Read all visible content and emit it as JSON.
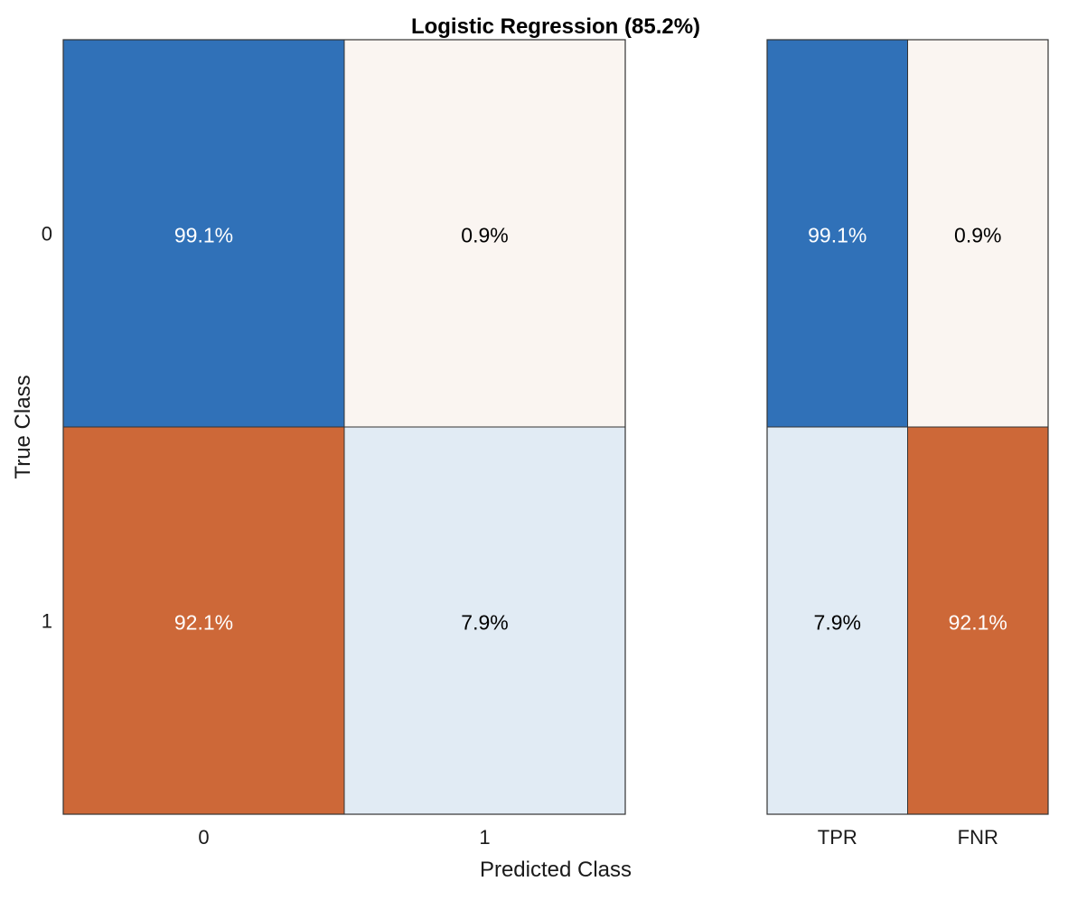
{
  "chart_data": [
    {
      "type": "heatmap",
      "title": "Logistic Regression (85.2%)",
      "xlabel": "Predicted Class",
      "ylabel": "True Class",
      "x_categories": [
        "0",
        "1"
      ],
      "y_categories": [
        "0",
        "1"
      ],
      "values": [
        [
          99.1,
          0.9
        ],
        [
          92.1,
          7.9
        ]
      ],
      "cell_labels": [
        [
          "99.1%",
          "0.9%"
        ],
        [
          "92.1%",
          "7.9%"
        ]
      ],
      "colors": [
        [
          "#3071b8",
          "#faf5f1"
        ],
        [
          "#cd6838",
          "#e1ebf4"
        ]
      ],
      "text_colors": [
        [
          "#ffffff",
          "#000000"
        ],
        [
          "#ffffff",
          "#000000"
        ]
      ]
    },
    {
      "type": "heatmap",
      "title": "",
      "xlabel": "",
      "ylabel": "",
      "x_categories": [
        "TPR",
        "FNR"
      ],
      "y_categories": [
        "0",
        "1"
      ],
      "values": [
        [
          99.1,
          0.9
        ],
        [
          7.9,
          92.1
        ]
      ],
      "cell_labels": [
        [
          "99.1%",
          "0.9%"
        ],
        [
          "7.9%",
          "92.1%"
        ]
      ],
      "colors": [
        [
          "#3071b8",
          "#faf5f1"
        ],
        [
          "#e1ebf4",
          "#cd6838"
        ]
      ],
      "text_colors": [
        [
          "#ffffff",
          "#000000"
        ],
        [
          "#000000",
          "#ffffff"
        ]
      ]
    }
  ],
  "style": {
    "border_color": "#333333",
    "axis_text_color": "#1a1a1a"
  }
}
